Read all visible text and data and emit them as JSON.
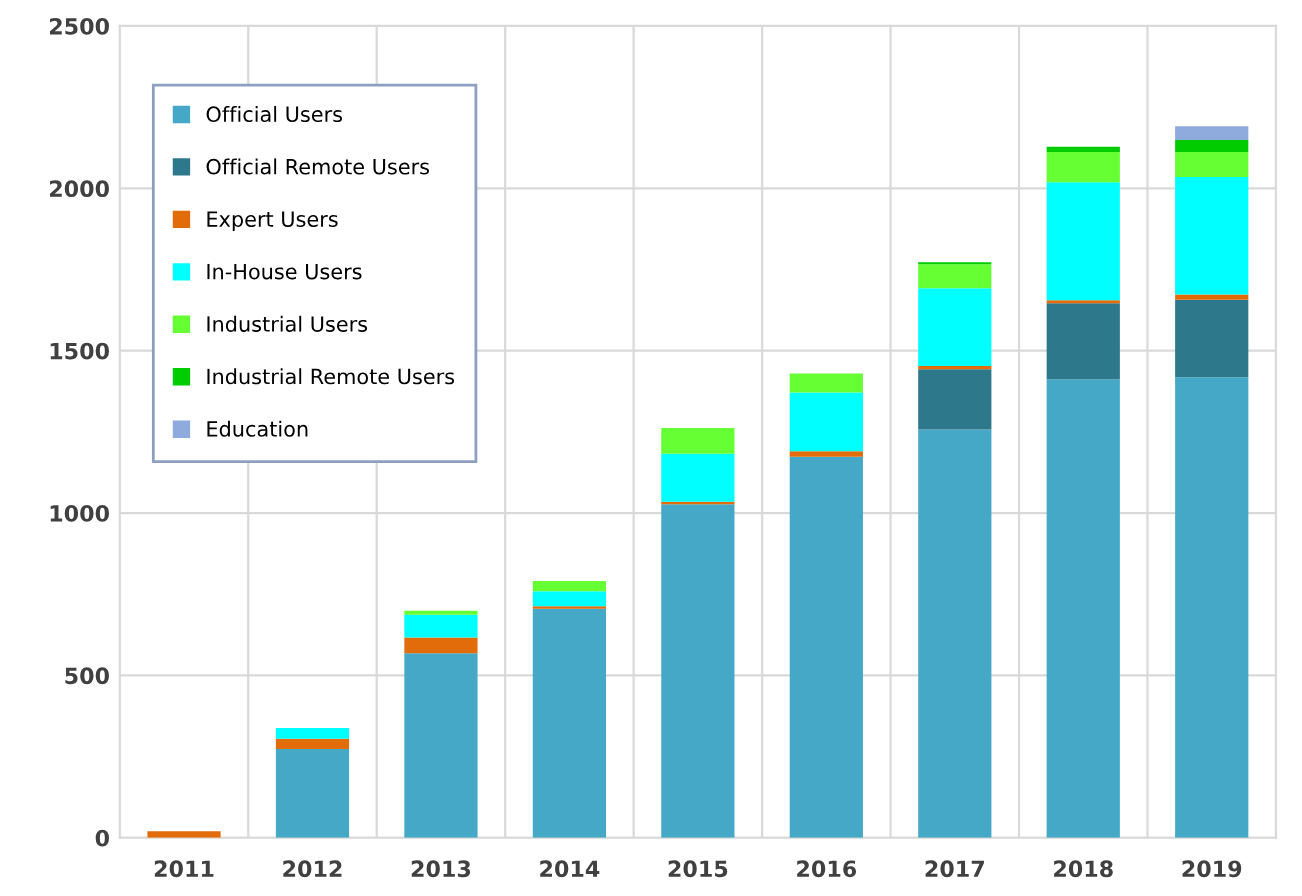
{
  "chart_data": {
    "type": "bar",
    "stacked": true,
    "categories": [
      "2011",
      "2012",
      "2013",
      "2014",
      "2015",
      "2016",
      "2017",
      "2018",
      "2019"
    ],
    "series": [
      {
        "name": "Official Users",
        "color": "#45a8c6",
        "values": [
          0,
          273,
          568,
          705,
          1027,
          1173,
          1257,
          1412,
          1418
        ]
      },
      {
        "name": "Official Remote Users",
        "color": "#2e788c",
        "values": [
          0,
          0,
          0,
          0,
          0,
          0,
          186,
          234,
          239
        ]
      },
      {
        "name": "Expert Users",
        "color": "#e36c0a",
        "values": [
          20,
          32,
          49,
          8,
          8,
          17,
          10,
          9,
          16
        ]
      },
      {
        "name": "In-House Users",
        "color": "#00ffff",
        "values": [
          0,
          33,
          70,
          46,
          148,
          181,
          239,
          364,
          362
        ]
      },
      {
        "name": "Industrial Users",
        "color": "#66ff33",
        "values": [
          0,
          0,
          12,
          32,
          79,
          59,
          74,
          93,
          77
        ]
      },
      {
        "name": "Industrial Remote Users",
        "color": "#00cc00",
        "values": [
          0,
          0,
          0,
          0,
          0,
          0,
          6,
          16,
          37
        ]
      },
      {
        "name": "Education",
        "color": "#8faadc",
        "values": [
          0,
          0,
          0,
          0,
          0,
          0,
          0,
          0,
          42
        ]
      }
    ],
    "ylim": [
      0,
      2500
    ],
    "yticks": [
      0,
      500,
      1000,
      1500,
      2000,
      2500
    ],
    "grid": true,
    "legend": "top left"
  }
}
